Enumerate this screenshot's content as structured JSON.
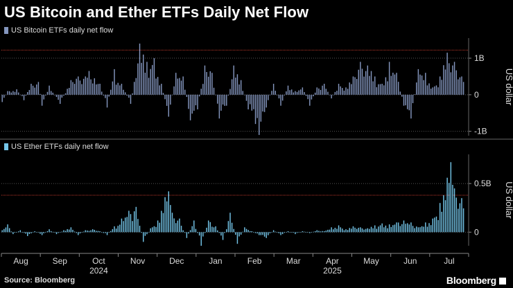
{
  "title": "US Bitcoin and Ether ETFs Daily Net Flow",
  "source": "Source: Bloomberg",
  "brand": "Bloomberg",
  "colors": {
    "bitcoin": "#8496be",
    "ether": "#74c5e8",
    "reference_line": "#c0392b"
  },
  "chart_data": [
    {
      "type": "bar",
      "legend": "US Bitcoin ETFs daily net flow",
      "ylabel": "US dollar",
      "ylim": [
        -1.12,
        1.55
      ],
      "yticks": [
        {
          "v": 1,
          "label": "1B"
        },
        {
          "v": 0,
          "label": "0"
        },
        {
          "v": -1,
          "label": "-1B"
        }
      ],
      "reference_line": 1.22,
      "keys": [
        [
          0,
          -0.2
        ],
        [
          3,
          0.1
        ],
        [
          8,
          0.15
        ],
        [
          12,
          -0.15
        ],
        [
          16,
          0.3
        ],
        [
          20,
          0.35
        ],
        [
          22,
          -0.3
        ],
        [
          26,
          0.25
        ],
        [
          32,
          -0.25
        ],
        [
          38,
          0.4
        ],
        [
          42,
          0.5
        ],
        [
          48,
          0.65
        ],
        [
          54,
          0.3
        ],
        [
          58,
          -0.35
        ],
        [
          62,
          0.7
        ],
        [
          66,
          0.3
        ],
        [
          71,
          -0.25
        ],
        [
          76,
          1.4
        ],
        [
          80,
          0.9
        ],
        [
          84,
          1.0
        ],
        [
          88,
          0.3
        ],
        [
          92,
          -0.6
        ],
        [
          96,
          0.6
        ],
        [
          100,
          0.5
        ],
        [
          104,
          -0.7
        ],
        [
          108,
          -0.4
        ],
        [
          112,
          0.8
        ],
        [
          116,
          0.6
        ],
        [
          120,
          -0.65
        ],
        [
          124,
          -0.3
        ],
        [
          128,
          0.8
        ],
        [
          132,
          0.4
        ],
        [
          136,
          -0.4
        ],
        [
          140,
          -0.8
        ],
        [
          142,
          -1.1
        ],
        [
          146,
          -0.35
        ],
        [
          150,
          0.3
        ],
        [
          154,
          -0.3
        ],
        [
          158,
          0.25
        ],
        [
          162,
          0.1
        ],
        [
          166,
          0.2
        ],
        [
          170,
          -0.3
        ],
        [
          174,
          0.2
        ],
        [
          178,
          0.3
        ],
        [
          182,
          -0.1
        ],
        [
          186,
          0.3
        ],
        [
          190,
          0.2
        ],
        [
          194,
          0.5
        ],
        [
          198,
          0.9
        ],
        [
          202,
          0.8
        ],
        [
          206,
          0.5
        ],
        [
          210,
          0.3
        ],
        [
          214,
          0.9
        ],
        [
          218,
          0.6
        ],
        [
          222,
          -0.3
        ],
        [
          226,
          -0.65
        ],
        [
          230,
          0.7
        ],
        [
          234,
          0.6
        ],
        [
          238,
          0.2
        ],
        [
          242,
          0.5
        ],
        [
          246,
          1.15
        ],
        [
          250,
          0.9
        ],
        [
          254,
          0.5
        ]
      ],
      "n": 256
    },
    {
      "type": "bar",
      "legend": "US Ether ETFs daily net flow",
      "ylabel": "US dollar",
      "ylim": [
        -0.14,
        0.8
      ],
      "yticks": [
        {
          "v": 0.5,
          "label": "0.5B"
        },
        {
          "v": 0,
          "label": "0"
        }
      ],
      "reference_line": 0.38,
      "keys": [
        [
          0,
          0.02
        ],
        [
          3,
          0.08
        ],
        [
          6,
          -0.02
        ],
        [
          10,
          0.02
        ],
        [
          14,
          -0.04
        ],
        [
          18,
          0.01
        ],
        [
          22,
          -0.03
        ],
        [
          26,
          0.03
        ],
        [
          30,
          -0.02
        ],
        [
          34,
          0.02
        ],
        [
          38,
          0.05
        ],
        [
          42,
          -0.03
        ],
        [
          46,
          0.02
        ],
        [
          50,
          0.03
        ],
        [
          54,
          0.01
        ],
        [
          58,
          -0.03
        ],
        [
          62,
          0.06
        ],
        [
          66,
          0.14
        ],
        [
          70,
          0.22
        ],
        [
          74,
          0.26
        ],
        [
          78,
          -0.1
        ],
        [
          82,
          0.04
        ],
        [
          86,
          0.12
        ],
        [
          90,
          0.36
        ],
        [
          92,
          0.42
        ],
        [
          94,
          0.2
        ],
        [
          98,
          0.14
        ],
        [
          102,
          -0.06
        ],
        [
          106,
          0.12
        ],
        [
          110,
          -0.14
        ],
        [
          114,
          0.12
        ],
        [
          118,
          0.06
        ],
        [
          122,
          -0.08
        ],
        [
          126,
          0.2
        ],
        [
          130,
          -0.12
        ],
        [
          134,
          0.05
        ],
        [
          138,
          0.01
        ],
        [
          142,
          -0.03
        ],
        [
          146,
          -0.06
        ],
        [
          150,
          0.02
        ],
        [
          154,
          -0.03
        ],
        [
          158,
          0.01
        ],
        [
          162,
          -0.02
        ],
        [
          166,
          0.01
        ],
        [
          170,
          -0.01
        ],
        [
          174,
          0.02
        ],
        [
          178,
          0.01
        ],
        [
          182,
          0.05
        ],
        [
          186,
          0.07
        ],
        [
          190,
          0.03
        ],
        [
          194,
          0.06
        ],
        [
          198,
          0.05
        ],
        [
          202,
          0.04
        ],
        [
          206,
          0.07
        ],
        [
          210,
          0.09
        ],
        [
          214,
          0.08
        ],
        [
          218,
          0.1
        ],
        [
          222,
          0.12
        ],
        [
          226,
          0.1
        ],
        [
          230,
          0.05
        ],
        [
          234,
          0.1
        ],
        [
          238,
          0.14
        ],
        [
          242,
          0.3
        ],
        [
          244,
          0.38
        ],
        [
          246,
          0.56
        ],
        [
          248,
          0.72
        ],
        [
          250,
          0.45
        ],
        [
          254,
          0.35
        ]
      ],
      "n": 256
    }
  ],
  "x_axis": {
    "months": [
      "Aug",
      "Sep",
      "Oct",
      "Nov",
      "Dec",
      "Jan",
      "Feb",
      "Mar",
      "Apr",
      "May",
      "Jun",
      "Jul"
    ],
    "years": [
      "2024",
      "2025"
    ]
  }
}
